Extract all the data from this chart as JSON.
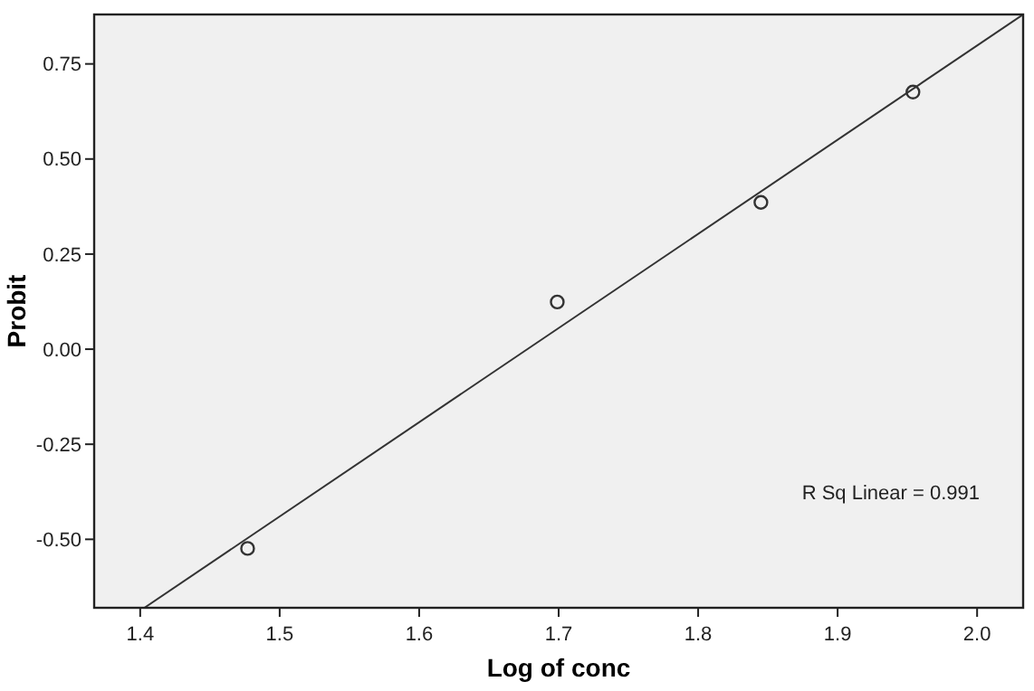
{
  "chart_data": {
    "type": "scatter",
    "xlabel": "Log of conc",
    "ylabel": "Probit",
    "x": [
      1.477,
      1.699,
      1.845,
      1.954
    ],
    "series": [
      {
        "color": "#333333",
        "values": [
          -0.524,
          0.124,
          0.386,
          0.676
        ],
        "marker": "circle"
      },
      {
        "type": "line",
        "color": "#333333",
        "x": [
          1.403,
          2.033
        ],
        "values": [
          -0.68,
          0.88
        ],
        "line_style": "solid"
      }
    ],
    "xlim": [
      1.367,
      2.033
    ],
    "xticks": [
      {
        "value": 1.4,
        "label": "1.4"
      },
      {
        "value": 1.5,
        "label": "1.5"
      },
      {
        "value": 1.6,
        "label": "1.6"
      },
      {
        "value": 1.7,
        "label": "1.7"
      },
      {
        "value": 1.8,
        "label": "1.8"
      },
      {
        "value": 1.9,
        "label": "1.9"
      },
      {
        "value": 2.0,
        "label": "2.0"
      }
    ],
    "ylim": [
      -0.68,
      0.88
    ],
    "yticks": [
      {
        "value": -0.5,
        "label": "-0.50"
      },
      {
        "value": -0.25,
        "label": "-0.25"
      },
      {
        "value": 0,
        "label": "0.00"
      },
      {
        "value": 0.25,
        "label": "0.25"
      },
      {
        "value": 0.5,
        "label": "0.50"
      },
      {
        "value": 0.75,
        "label": "0.75"
      }
    ],
    "annotations": [
      "R Sq Linear = 0.991"
    ],
    "grid": false
  }
}
